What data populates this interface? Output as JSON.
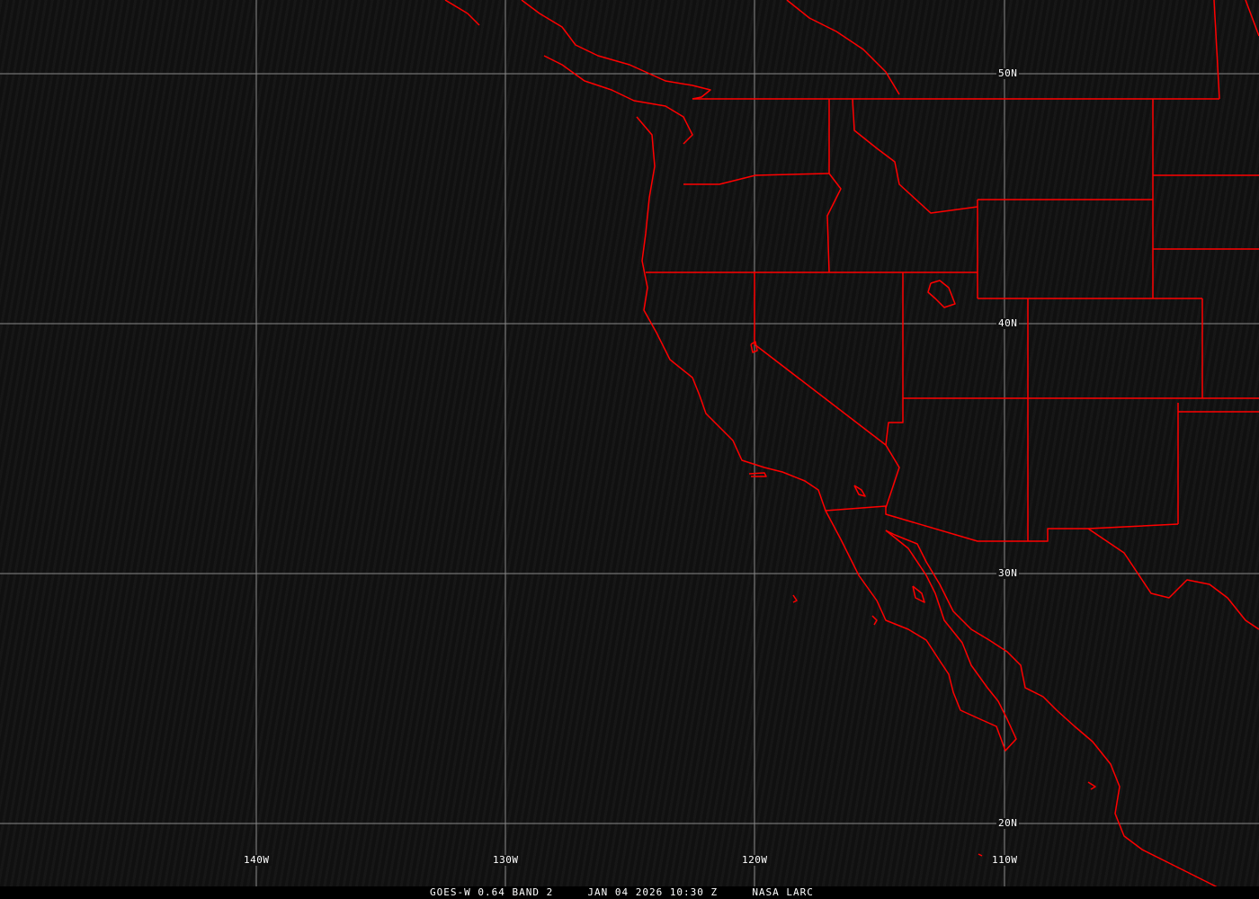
{
  "caption": {
    "satellite": "GOES-W 0.64 BAND 2",
    "datetime": "JAN 04 2026 10:30 Z",
    "source": "NASA LARC"
  },
  "grid": {
    "longitudes": [
      "140W",
      "130W",
      "120W",
      "110W"
    ],
    "latitudes": [
      "50N",
      "40N",
      "30N",
      "20N"
    ]
  },
  "colors": {
    "boundaries": "#ff0000",
    "grid": "#8a8a8a",
    "background": "#111111"
  }
}
